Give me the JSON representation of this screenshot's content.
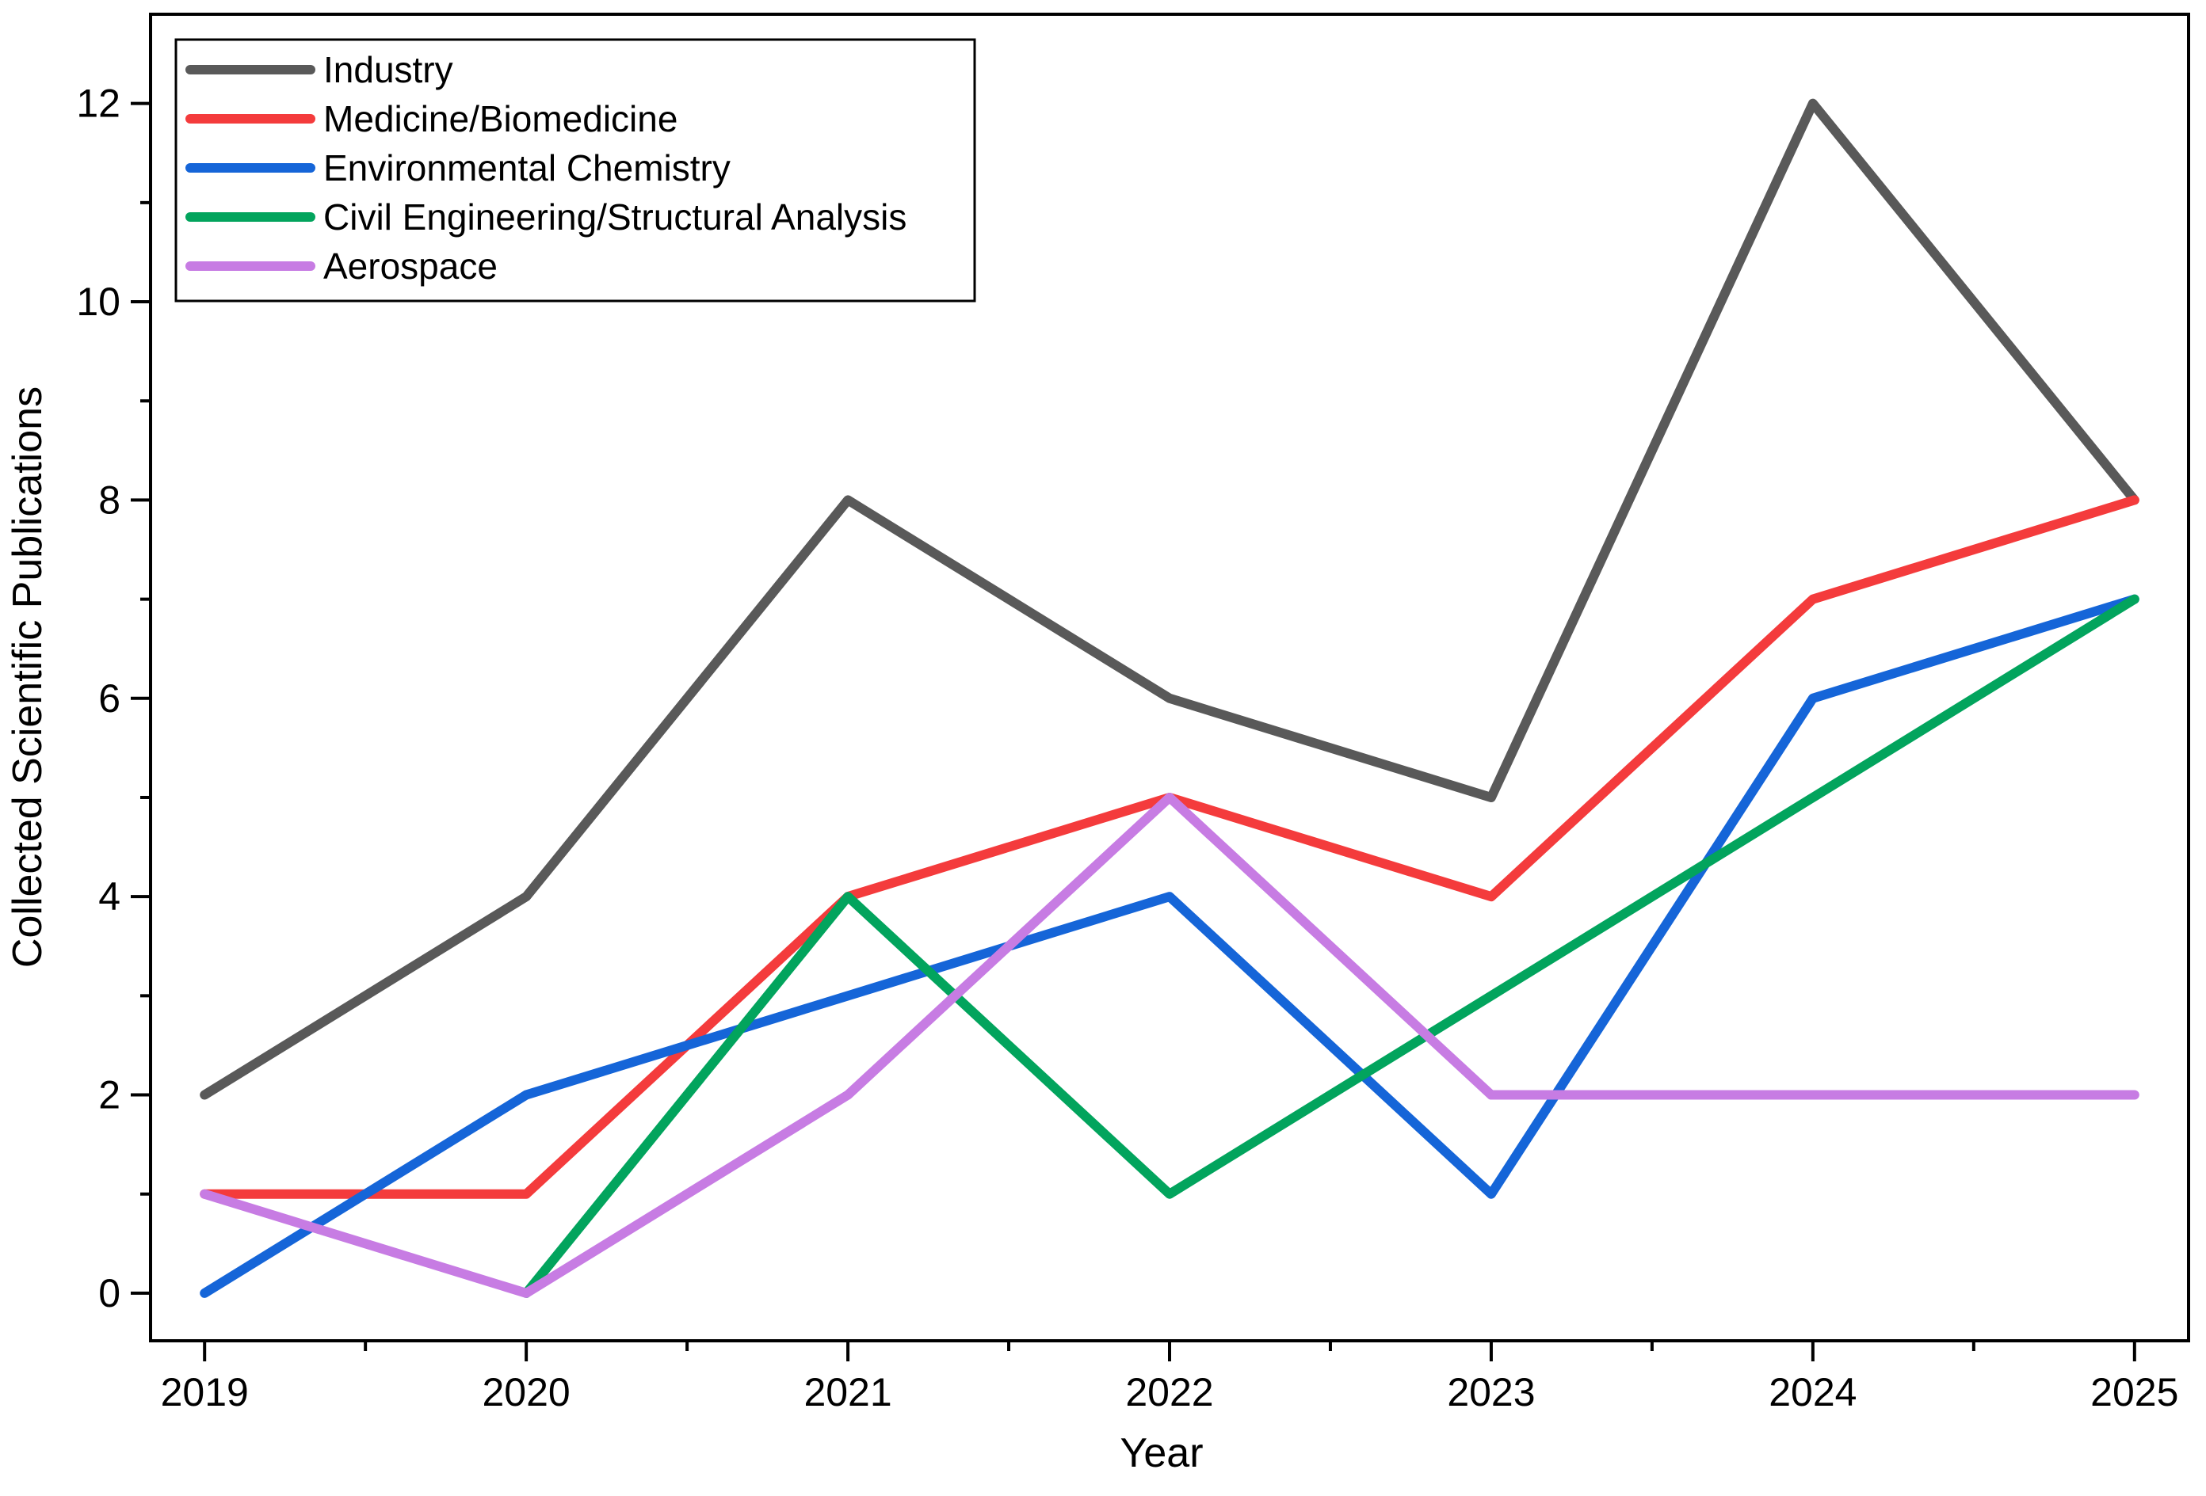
{
  "chart_data": {
    "type": "line",
    "title": "",
    "xlabel": "Year",
    "ylabel": "Collected Scientific Publications",
    "categories": [
      2019,
      2020,
      2021,
      2022,
      2023,
      2024,
      2025
    ],
    "x_tick_labels": [
      "2019",
      "2020",
      "2021",
      "2022",
      "2023",
      "2024",
      "2025"
    ],
    "y_major_ticks": [
      0,
      2,
      4,
      6,
      8,
      10,
      12
    ],
    "y_minor_ticks": [
      1,
      3,
      5,
      7,
      9,
      11
    ],
    "x_minor_ticks": [
      2019.5,
      2020.5,
      2021.5,
      2022.5,
      2023.5,
      2024.5
    ],
    "xlim": [
      2018.832,
      2025.168
    ],
    "ylim": [
      -0.48,
      12.9
    ],
    "grid": false,
    "legend_position": "top-left",
    "axis_color": "#000000",
    "series": [
      {
        "name": "Industry",
        "color": "#595959",
        "values": [
          2,
          4,
          8,
          6,
          5,
          12,
          8
        ]
      },
      {
        "name": "Medicine/Biomedicine",
        "color": "#F43B3C",
        "values": [
          1,
          1,
          4,
          5,
          4,
          7,
          8
        ]
      },
      {
        "name": "Environmental Chemistry",
        "color": "#1565D8",
        "values": [
          0,
          2,
          3,
          4,
          1,
          6,
          7
        ]
      },
      {
        "name": "Civil Engineering/Structural Analysis",
        "color": "#02A45D",
        "values": [
          null,
          0,
          4,
          1,
          3,
          5,
          7
        ]
      },
      {
        "name": "Aerospace",
        "color": "#C77CE3",
        "values": [
          1,
          0,
          2,
          5,
          2,
          2,
          2
        ]
      }
    ]
  }
}
